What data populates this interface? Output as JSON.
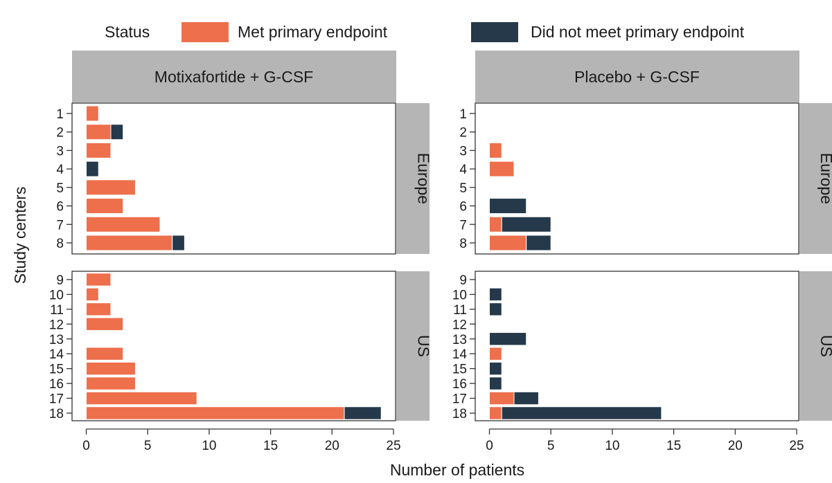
{
  "chart_data": {
    "type": "bar",
    "orientation": "horizontal",
    "stacked": true,
    "xlabel": "Number of patients",
    "ylabel": "Study centers",
    "xlim": [
      0,
      25
    ],
    "xticks": [
      0,
      5,
      10,
      15,
      20,
      25
    ],
    "legend": {
      "title": "Status",
      "placement": "top",
      "entries": [
        {
          "name": "Met primary endpoint",
          "color": "#ED6F4C"
        },
        {
          "name": "Did not meet primary endpoint",
          "color": "#25394A"
        }
      ]
    },
    "columns": [
      {
        "label": "Motixafortide + G-CSF"
      },
      {
        "label": "Placebo + G-CSF"
      }
    ],
    "rows": [
      {
        "label": "Europe",
        "centers": [
          "1",
          "2",
          "3",
          "4",
          "5",
          "6",
          "7",
          "8"
        ]
      },
      {
        "label": "US",
        "centers": [
          "9",
          "10",
          "11",
          "12",
          "13",
          "14",
          "15",
          "16",
          "17",
          "18"
        ]
      }
    ],
    "panels": [
      {
        "column": "Motixafortide + G-CSF",
        "row": "Europe",
        "series": [
          {
            "name": "Met primary endpoint",
            "values": [
              1,
              2,
              2,
              0,
              4,
              3,
              6,
              7
            ]
          },
          {
            "name": "Did not meet primary endpoint",
            "values": [
              0,
              1,
              0,
              1,
              0,
              0,
              0,
              1
            ]
          }
        ]
      },
      {
        "column": "Placebo + G-CSF",
        "row": "Europe",
        "series": [
          {
            "name": "Met primary endpoint",
            "values": [
              0,
              0,
              1,
              2,
              0,
              0,
              1,
              3
            ]
          },
          {
            "name": "Did not meet primary endpoint",
            "values": [
              0,
              0,
              0,
              0,
              0,
              3,
              4,
              2
            ]
          }
        ]
      },
      {
        "column": "Motixafortide + G-CSF",
        "row": "US",
        "series": [
          {
            "name": "Met primary endpoint",
            "values": [
              2,
              1,
              2,
              3,
              0,
              3,
              4,
              4,
              9,
              21
            ]
          },
          {
            "name": "Did not meet primary endpoint",
            "values": [
              0,
              0,
              0,
              0,
              0,
              0,
              0,
              0,
              0,
              3
            ]
          }
        ]
      },
      {
        "column": "Placebo + G-CSF",
        "row": "US",
        "series": [
          {
            "name": "Met primary endpoint",
            "values": [
              0,
              0,
              0,
              0,
              0,
              1,
              0,
              0,
              2,
              1
            ]
          },
          {
            "name": "Did not meet primary endpoint",
            "values": [
              0,
              1,
              1,
              0,
              3,
              0,
              1,
              1,
              2,
              13
            ]
          }
        ]
      }
    ]
  }
}
